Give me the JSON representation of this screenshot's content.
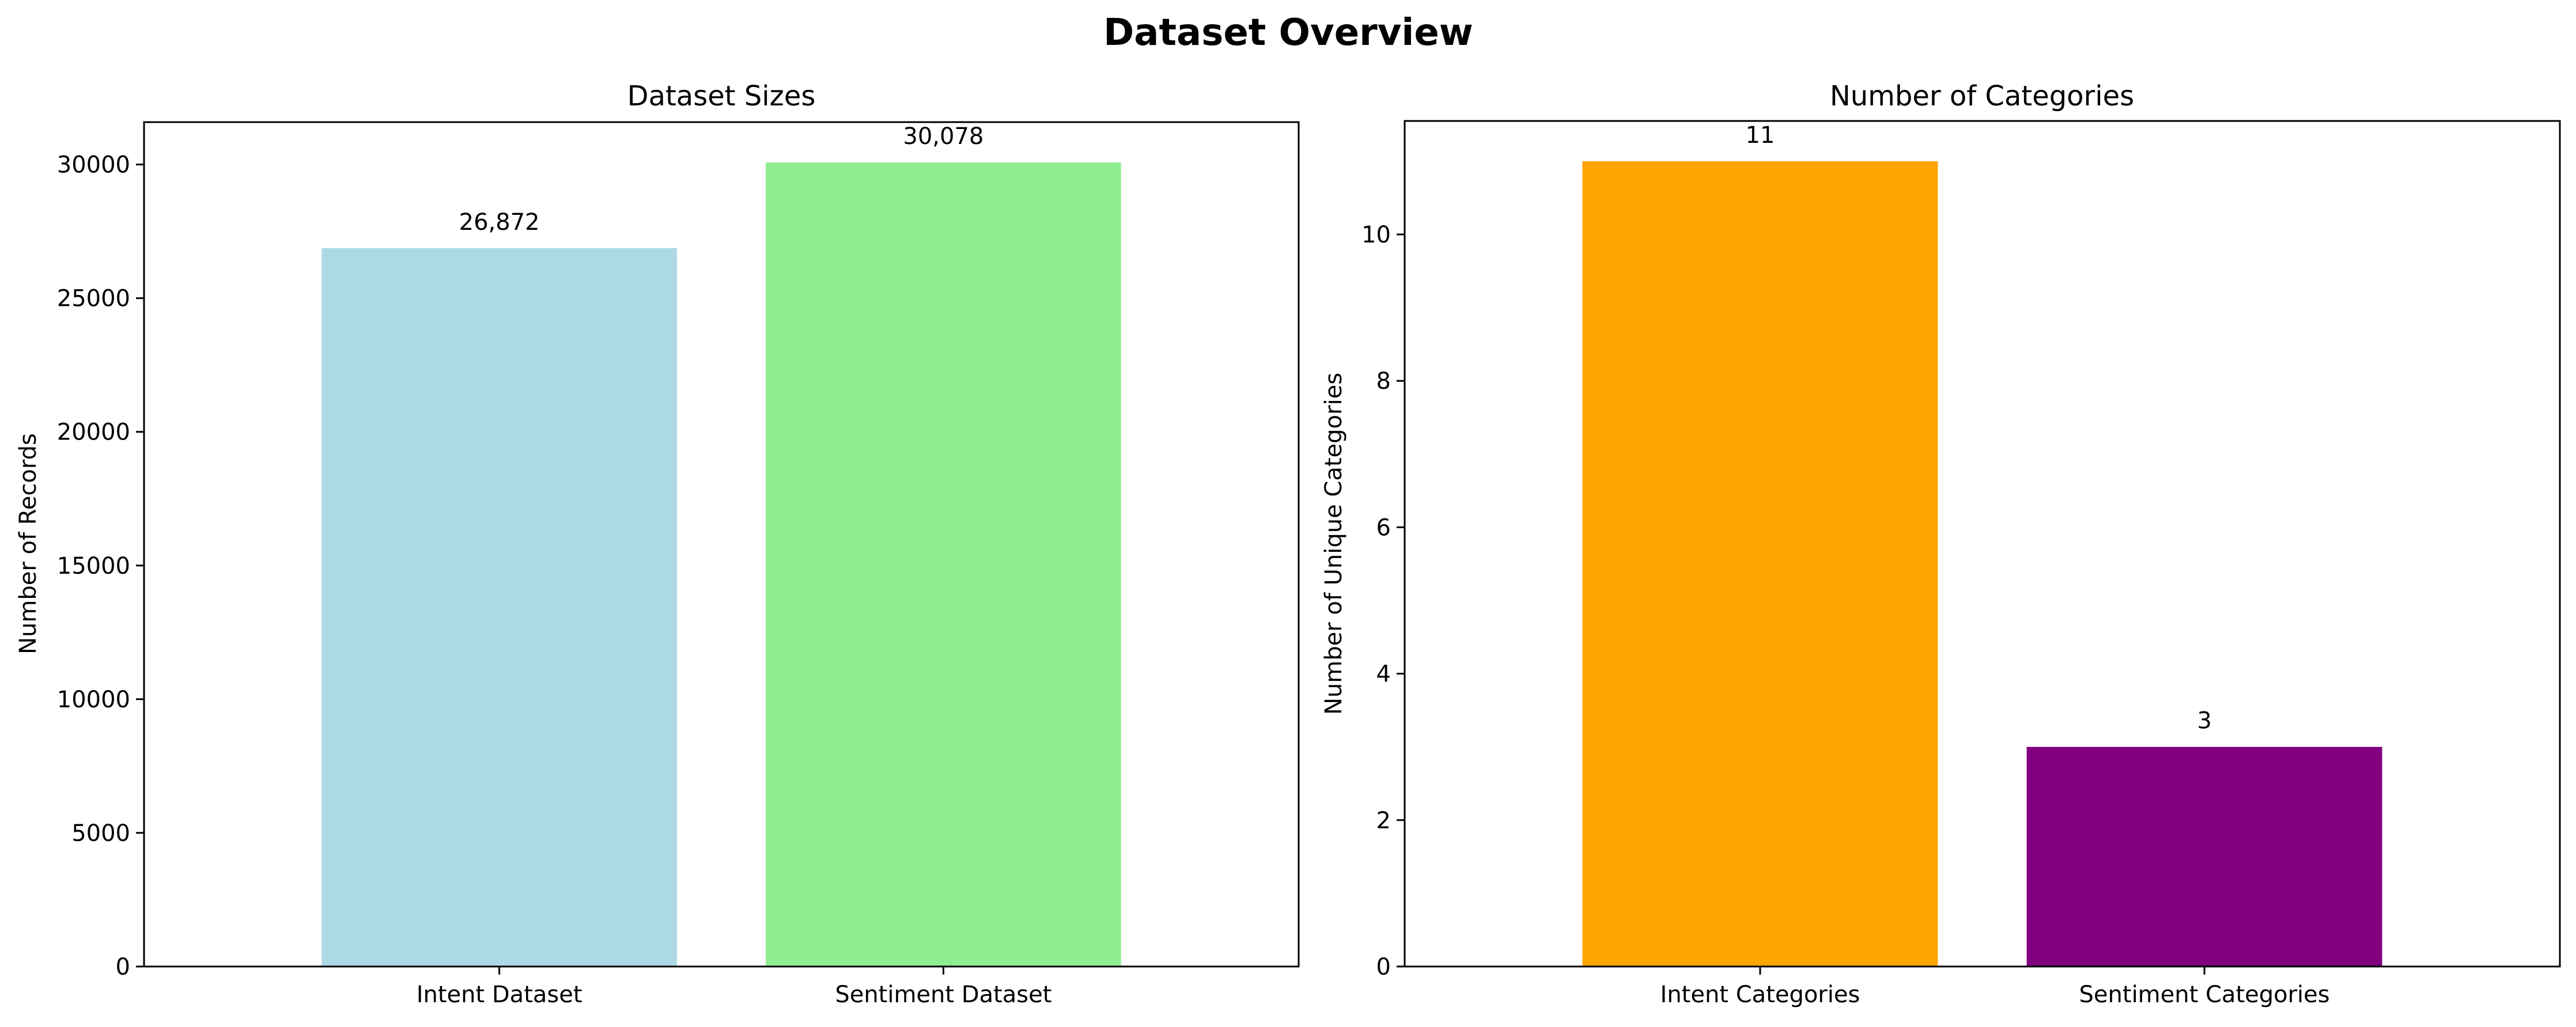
{
  "suptitle": "Dataset Overview",
  "chart_data": [
    {
      "type": "bar",
      "title": "Dataset Sizes",
      "xlabel": "",
      "ylabel": "Number of Records",
      "categories": [
        "Intent Dataset",
        "Sentiment Dataset"
      ],
      "values": [
        26872,
        30078
      ],
      "value_labels": [
        "26,872",
        "30,078"
      ],
      "colors": [
        "#add8e6",
        "#90ee90"
      ],
      "ylim": [
        0,
        31586
      ],
      "yticks": [
        0,
        5000,
        10000,
        15000,
        20000,
        25000,
        30000
      ],
      "grid": false
    },
    {
      "type": "bar",
      "title": "Number of Categories",
      "xlabel": "",
      "ylabel": "Number of Unique Categories",
      "categories": [
        "Intent Categories",
        "Sentiment Categories"
      ],
      "values": [
        11,
        3
      ],
      "value_labels": [
        "11",
        "3"
      ],
      "colors": [
        "#ffa500",
        "#800080"
      ],
      "ylim": [
        0,
        11.55
      ],
      "yticks": [
        0,
        2,
        4,
        6,
        8,
        10
      ],
      "grid": false
    }
  ]
}
